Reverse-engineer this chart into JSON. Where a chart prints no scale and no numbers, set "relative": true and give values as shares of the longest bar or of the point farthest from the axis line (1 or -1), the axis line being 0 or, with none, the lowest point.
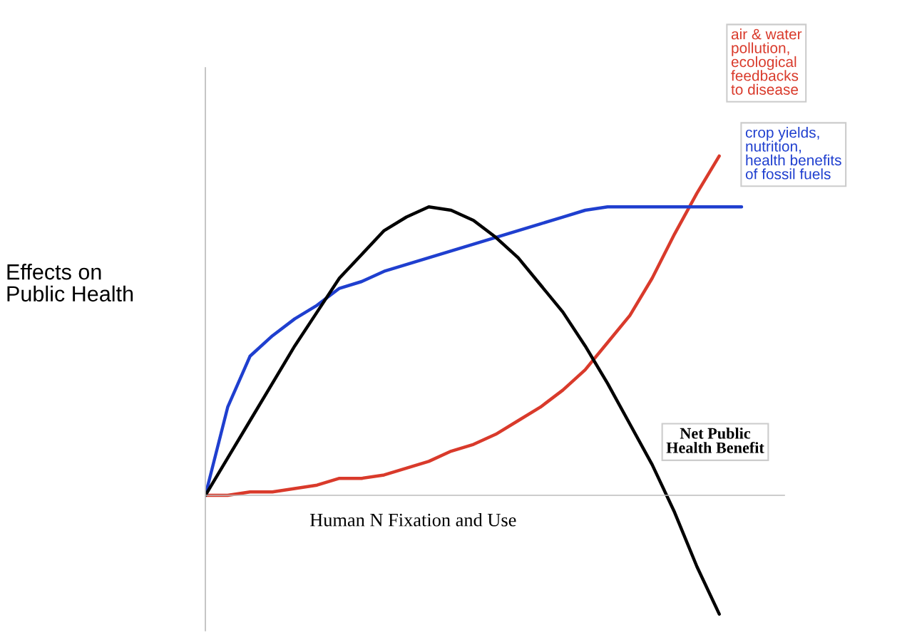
{
  "chart_data": {
    "type": "line",
    "relative": true,
    "xlabel": "Human N Fixation and Use",
    "ylabel": "Effects on\nPublic Health",
    "legend": false,
    "grid": false,
    "marker": "none",
    "line_style": "solid",
    "categories": [
      null,
      null,
      null,
      null,
      null,
      null,
      null,
      null,
      null,
      null,
      null,
      null,
      null,
      null,
      null,
      null,
      null,
      null,
      null,
      null,
      null,
      null,
      null,
      null,
      null
    ],
    "series": [
      {
        "name": "air & water\npollution,\necological\nfeedbacks\nto disease",
        "color": "#d93a2b",
        "values": [
          0,
          0.0,
          0.01,
          0.01,
          0.02,
          0.03,
          0.05,
          0.05,
          0.06,
          0.08,
          0.1,
          0.13,
          0.15,
          0.18,
          0.22,
          0.26,
          0.31,
          0.37,
          0.45,
          0.53,
          0.64,
          0.77,
          0.89,
          1.0,
          null
        ]
      },
      {
        "name": "crop yields,\nnutrition,\nhealth benefits\nof fossil fuels",
        "color": "#1f3fcf",
        "values": [
          0,
          0.26,
          0.41,
          0.47,
          0.52,
          0.56,
          0.61,
          0.63,
          0.66,
          0.68,
          0.7,
          0.72,
          0.74,
          0.76,
          0.78,
          0.8,
          0.82,
          0.84,
          0.85,
          0.85,
          0.85,
          0.85,
          0.85,
          0.85,
          0.85
        ]
      },
      {
        "name": "Net Public\nHealth Benefit",
        "color": "#000000",
        "values": [
          0,
          0.11,
          0.22,
          0.33,
          0.44,
          0.54,
          0.64,
          0.71,
          0.78,
          0.82,
          0.85,
          0.84,
          0.81,
          0.76,
          0.7,
          0.62,
          0.54,
          0.44,
          0.33,
          0.21,
          0.09,
          -0.05,
          -0.21,
          -0.35,
          null
        ]
      }
    ]
  }
}
